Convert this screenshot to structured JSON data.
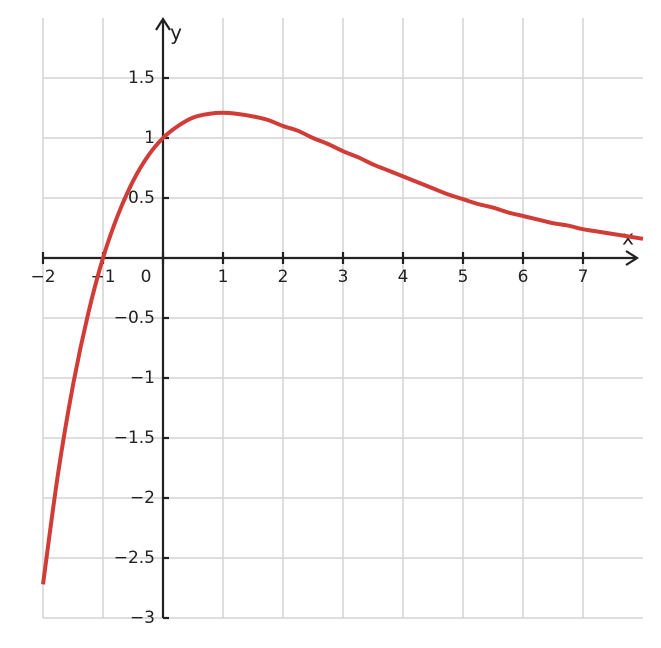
{
  "chart_data": {
    "type": "line",
    "x_label": "x",
    "y_label": "y",
    "x": [
      -2,
      -1.75,
      -1.5,
      -1.25,
      -1,
      -0.75,
      -0.5,
      -0.25,
      0,
      0.25,
      0.5,
      0.75,
      1,
      1.25,
      1.5,
      1.75,
      2,
      2.25,
      2.5,
      2.75,
      3,
      3.25,
      3.5,
      3.75,
      4,
      4.25,
      4.5,
      4.75,
      5,
      5.25,
      5.5,
      5.75,
      6,
      6.25,
      6.5,
      6.75,
      7,
      7.25,
      7.5,
      7.75,
      8
    ],
    "series": [
      {
        "color": "#d03c36",
        "values": [
          -2.72,
          -1.8,
          -1.06,
          -0.47,
          0,
          0.36,
          0.64,
          0.85,
          1,
          1.1,
          1.17,
          1.2,
          1.21,
          1.2,
          1.18,
          1.15,
          1.1,
          1.06,
          1.0,
          0.95,
          0.89,
          0.84,
          0.78,
          0.73,
          0.68,
          0.63,
          0.58,
          0.53,
          0.49,
          0.45,
          0.42,
          0.38,
          0.35,
          0.32,
          0.29,
          0.27,
          0.24,
          0.22,
          0.2,
          0.18,
          0.16
        ]
      }
    ],
    "xlim": [
      -2,
      8
    ],
    "ylim": [
      -3,
      2
    ],
    "xticks": [
      {
        "value": -2,
        "label": "−2"
      },
      {
        "value": -1,
        "label": "−1"
      },
      0,
      1,
      2,
      3,
      4,
      5,
      6,
      7
    ],
    "yticks": [
      1.5,
      1,
      0.5,
      {
        "value": -0.5,
        "label": "−0.5"
      },
      {
        "value": -1,
        "label": "−1"
      },
      {
        "value": -1.5,
        "label": "−1.5"
      },
      {
        "value": -2,
        "label": "−2"
      },
      {
        "value": -2.5,
        "label": "−2.5"
      },
      {
        "value": -3,
        "label": "−3"
      }
    ],
    "grid": true
  }
}
